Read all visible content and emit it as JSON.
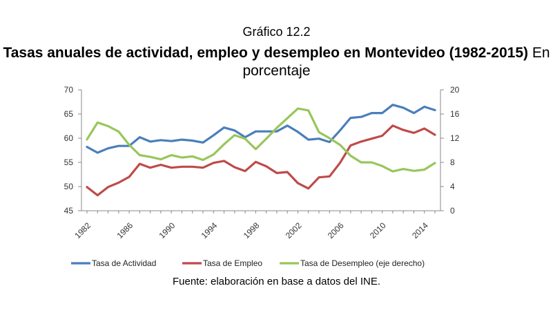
{
  "chart_label": "Gráfico 12.2",
  "source_note": "Fuente: elaboración en base a datos del INE.",
  "colors": {
    "actividad": "#4a7ebb",
    "empleo": "#be4b48",
    "desempleo": "#98c65a",
    "axis": "#888888",
    "background": "#ffffff"
  },
  "chart_data": {
    "type": "line",
    "title": "Tasas anuales de actividad, empleo y desempleo en Montevideo (1982-2015)",
    "subtitle": "En porcentaje",
    "xlabel": "",
    "ylabel": "",
    "x": [
      1982,
      1983,
      1984,
      1985,
      1986,
      1987,
      1988,
      1989,
      1990,
      1991,
      1992,
      1993,
      1994,
      1995,
      1996,
      1997,
      1998,
      1999,
      2000,
      2001,
      2002,
      2003,
      2004,
      2005,
      2006,
      2007,
      2008,
      2009,
      2010,
      2011,
      2012,
      2013,
      2014,
      2015
    ],
    "x_ticks": [
      "1982",
      "1986",
      "1990",
      "1994",
      "1998",
      "2002",
      "2006",
      "2010",
      "2014"
    ],
    "ylim_left": [
      45,
      70
    ],
    "yticks_left": [
      "45",
      "50",
      "55",
      "60",
      "65",
      "70"
    ],
    "ylim_right": [
      0,
      20
    ],
    "yticks_right": [
      "0",
      "4",
      "8",
      "12",
      "16",
      "20"
    ],
    "legend_position": "bottom",
    "series": [
      {
        "name": "Tasa de Actividad",
        "axis": "left",
        "values": [
          58.2,
          57.0,
          57.9,
          58.4,
          58.4,
          60.2,
          59.3,
          59.6,
          59.4,
          59.7,
          59.5,
          59.1,
          60.6,
          62.2,
          61.6,
          60.2,
          61.4,
          61.4,
          61.4,
          62.6,
          61.3,
          59.7,
          59.9,
          59.2,
          61.6,
          64.2,
          64.4,
          65.2,
          65.2,
          66.9,
          66.3,
          65.2,
          66.5,
          65.8
        ]
      },
      {
        "name": "Tasa de Empleo",
        "axis": "left",
        "values": [
          49.9,
          48.2,
          49.9,
          50.8,
          52.0,
          54.7,
          53.9,
          54.5,
          53.9,
          54.1,
          54.1,
          53.9,
          54.9,
          55.3,
          54.0,
          53.2,
          55.1,
          54.2,
          52.8,
          53.0,
          50.7,
          49.6,
          51.9,
          52.1,
          54.9,
          58.5,
          59.3,
          59.9,
          60.5,
          62.6,
          61.7,
          61.1,
          62.0,
          60.7
        ]
      },
      {
        "name": "Tasa de Desempleo (eje derecho)",
        "axis": "right",
        "values": [
          11.8,
          14.6,
          14.0,
          13.1,
          10.9,
          9.2,
          8.9,
          8.5,
          9.2,
          8.8,
          9.0,
          8.4,
          9.3,
          11.0,
          12.5,
          11.9,
          10.2,
          11.9,
          13.7,
          15.3,
          16.9,
          16.6,
          13.0,
          12.0,
          10.9,
          9.1,
          8.0,
          8.0,
          7.4,
          6.5,
          6.9,
          6.6,
          6.8,
          7.9
        ]
      }
    ]
  }
}
